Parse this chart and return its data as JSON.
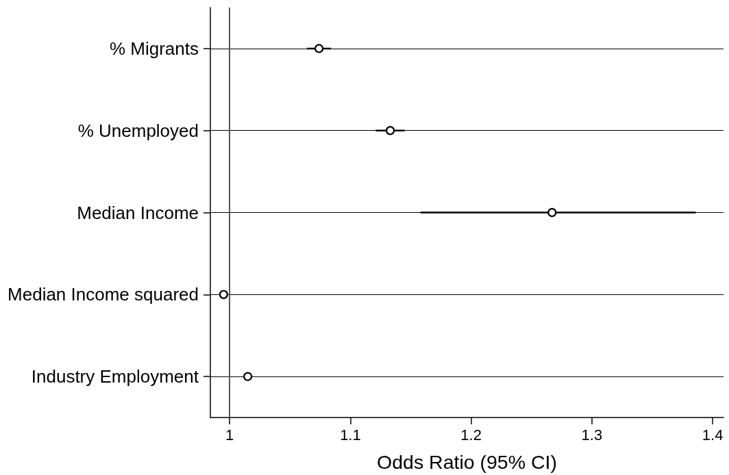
{
  "chart_data": {
    "type": "scatter",
    "orientation": "horizontal",
    "categories": [
      "% Migrants",
      "% Unemployed",
      "Median Income",
      "Median Income squared",
      "Industry Employment"
    ],
    "values": [
      1.074,
      1.133,
      1.267,
      0.995,
      1.015
    ],
    "errors": [
      [
        1.064,
        1.084
      ],
      [
        1.121,
        1.145
      ],
      [
        1.158,
        1.386
      ],
      null,
      null
    ],
    "color": "#000000",
    "marker": "circle",
    "xlabel": "Odds Ratio (95% CI)",
    "xlim": [
      0.984,
      1.409
    ],
    "xticks": [
      1,
      1.1,
      1.2,
      1.3,
      1.4
    ],
    "grid": "y",
    "ref_lines": [
      {
        "axis": "x",
        "value": 1,
        "color": "#555555"
      }
    ]
  }
}
